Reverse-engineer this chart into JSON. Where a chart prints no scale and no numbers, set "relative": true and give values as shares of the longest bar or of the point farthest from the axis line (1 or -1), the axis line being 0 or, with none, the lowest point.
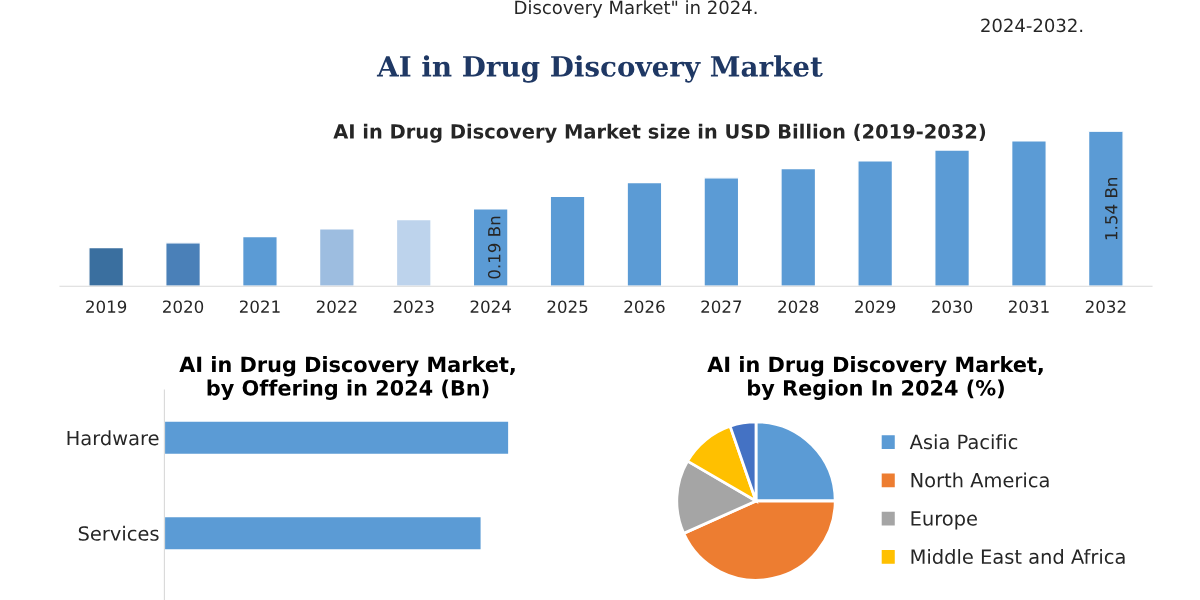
{
  "chart_data": [
    {
      "type": "bar",
      "title": "AI in Drug Discovery Market",
      "subtitle": "AI in Drug Discovery Market size in USD Billion (2019-2032)",
      "annotations": [
        "Discovery Market\" in 2024.",
        "2024-2032.",
        "0.19 Bn",
        "1.54 Bn"
      ],
      "relative": true,
      "categories": [
        "2019",
        "2020",
        "2021",
        "2022",
        "2023",
        "2024",
        "2025",
        "2026",
        "2027",
        "2028",
        "2029",
        "2030",
        "2031",
        "2032"
      ],
      "values": [
        0.25,
        0.28,
        0.32,
        0.37,
        0.43,
        0.5,
        0.58,
        0.67,
        0.7,
        0.76,
        0.81,
        0.88,
        0.94,
        1
      ],
      "colors": [
        "#3a6f9f",
        "#4a80b8",
        "#5b9bd5",
        "#9dbde0",
        "#bdd3ec",
        "#5b9bd5",
        "#5b9bd5",
        "#5b9bd5",
        "#5b9bd5",
        "#5b9bd5",
        "#5b9bd5",
        "#5b9bd5",
        "#5b9bd5",
        "#5b9bd5"
      ]
    },
    {
      "type": "bar",
      "orientation": "horizontal",
      "relative": true,
      "title": "AI in Drug Discovery Market, by Offering in 2024 (Bn)",
      "categories": [
        "Hardware",
        "Services"
      ],
      "values": [
        1,
        0.92
      ],
      "colors": [
        "#5b9bd5",
        "#5b9bd5"
      ]
    },
    {
      "type": "pie",
      "title": "AI in Drug Discovery Market, by Region In 2024 (%)",
      "legend": "right",
      "categories": [
        "Asia Pacific",
        "North America",
        "Europe",
        "Middle East and Africa",
        null
      ],
      "values": [
        25,
        43.3,
        15.1,
        11.3,
        5.3
      ],
      "colors": [
        "#5b9bd5",
        "#ed7d31",
        "#a5a5a5",
        "#ffc000",
        "#4472c4"
      ]
    }
  ]
}
